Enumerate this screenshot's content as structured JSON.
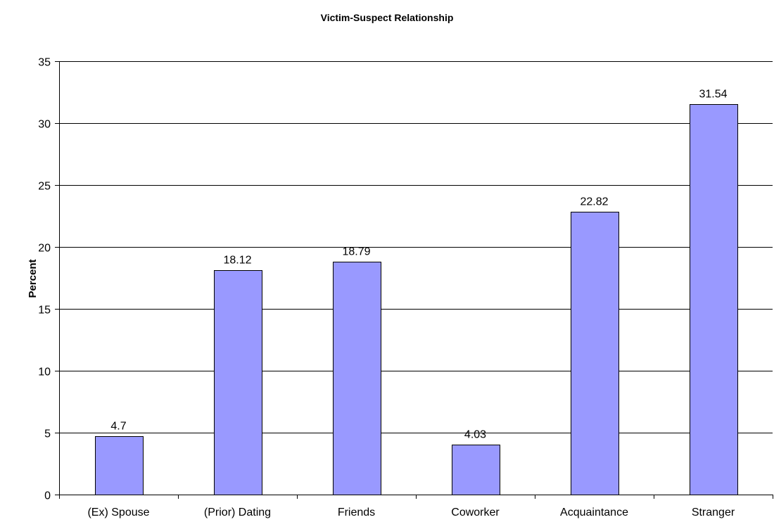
{
  "chart_data": {
    "type": "bar",
    "title": "Victim-Suspect Relationship",
    "xlabel": "",
    "ylabel": "Percent",
    "categories": [
      "(Ex) Spouse",
      "(Prior) Dating",
      "Friends",
      "Coworker",
      "Acquaintance",
      "Stranger"
    ],
    "values": [
      4.7,
      18.12,
      18.79,
      4.03,
      22.82,
      31.54
    ],
    "data_labels": [
      "4.7",
      "18.12",
      "18.79",
      "4.03",
      "22.82",
      "31.54"
    ],
    "ylim": [
      0,
      35
    ],
    "yticks": [
      0,
      5,
      10,
      15,
      20,
      25,
      30,
      35
    ],
    "grid": "horizontal",
    "legend": "none",
    "colors": {
      "bar_fill": "#9999ff",
      "bar_stroke": "#000000",
      "grid": "#000000"
    }
  }
}
